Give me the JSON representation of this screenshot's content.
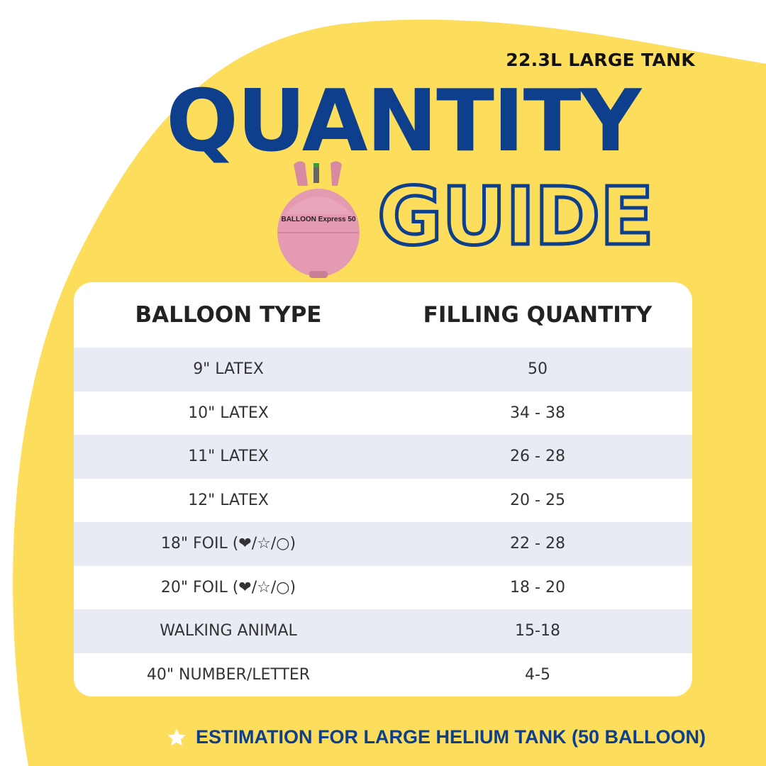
{
  "header": {
    "subtitle": "22.3L LARGE TANK",
    "title_line1": "QUANTITY",
    "title_line2": "GUIDE"
  },
  "product_image": {
    "brand_text": "BALLOON Express 50",
    "color": "#E49AB0"
  },
  "colors": {
    "accent_blue": "#0E3F8C",
    "background_yellow": "#FDDE5C",
    "row_shade": "#E8EBF4"
  },
  "table": {
    "columns": [
      "BALLOON TYPE",
      "FILLING QUANTITY"
    ],
    "rows": [
      {
        "type": "9\" LATEX",
        "quantity": "50"
      },
      {
        "type": "10\" LATEX",
        "quantity": "34 - 38"
      },
      {
        "type": "11\" LATEX",
        "quantity": "26 - 28"
      },
      {
        "type": "12\" LATEX",
        "quantity": "20 - 25"
      },
      {
        "type": "18\" FOIL (❤/☆/○)",
        "quantity": "22 - 28"
      },
      {
        "type": "20\" FOIL (❤/☆/○)",
        "quantity": "18 - 20"
      },
      {
        "type": "WALKING ANIMAL",
        "quantity": "15-18"
      },
      {
        "type": "40\" NUMBER/LETTER",
        "quantity": "4-5"
      }
    ]
  },
  "footer": {
    "icon": "star-icon",
    "text": "ESTIMATION FOR LARGE HELIUM TANK (50 BALLOON)"
  }
}
